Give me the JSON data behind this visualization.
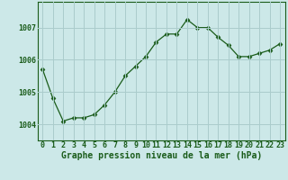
{
  "x": [
    0,
    1,
    2,
    3,
    4,
    5,
    6,
    7,
    8,
    9,
    10,
    11,
    12,
    13,
    14,
    15,
    16,
    17,
    18,
    19,
    20,
    21,
    22,
    23
  ],
  "y": [
    1005.7,
    1004.8,
    1004.1,
    1004.2,
    1004.2,
    1004.3,
    1004.6,
    1005.0,
    1005.5,
    1005.8,
    1006.1,
    1006.55,
    1006.8,
    1006.8,
    1007.25,
    1007.0,
    1007.0,
    1006.7,
    1006.45,
    1006.1,
    1006.1,
    1006.2,
    1006.3,
    1006.5
  ],
  "line_color": "#1a5c1a",
  "marker": "D",
  "marker_size": 2.5,
  "bg_color": "#cce8e8",
  "grid_color": "#aacccc",
  "xlabel": "Graphe pression niveau de la mer (hPa)",
  "xlabel_color": "#1a5c1a",
  "tick_color": "#1a5c1a",
  "ylim": [
    1003.5,
    1007.8
  ],
  "yticks": [
    1004,
    1005,
    1006,
    1007
  ],
  "tick_fontsize": 6.0,
  "xlabel_fontsize": 7.0
}
